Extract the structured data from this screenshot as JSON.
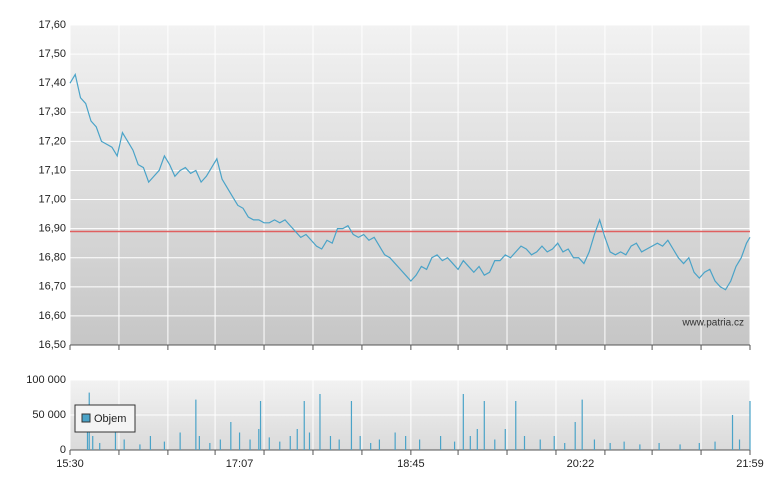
{
  "chart_data": [
    {
      "type": "line",
      "x": [
        930,
        933,
        936,
        939,
        942,
        945,
        948,
        951,
        954,
        957,
        960,
        963,
        966,
        969,
        972,
        975,
        978,
        981,
        984,
        987,
        990,
        993,
        996,
        999,
        1002,
        1005,
        1008,
        1011,
        1014,
        1017,
        1020,
        1023,
        1026,
        1029,
        1032,
        1035,
        1038,
        1041,
        1044,
        1047,
        1050,
        1053,
        1056,
        1059,
        1062,
        1065,
        1068,
        1071,
        1074,
        1077,
        1080,
        1083,
        1086,
        1089,
        1092,
        1095,
        1098,
        1101,
        1104,
        1107,
        1110,
        1113,
        1116,
        1119,
        1122,
        1125,
        1128,
        1131,
        1134,
        1137,
        1140,
        1143,
        1146,
        1149,
        1152,
        1155,
        1158,
        1161,
        1164,
        1167,
        1170,
        1173,
        1176,
        1179,
        1182,
        1185,
        1188,
        1191,
        1194,
        1197,
        1200,
        1203,
        1206,
        1209,
        1212,
        1215,
        1218,
        1221,
        1224,
        1227,
        1230,
        1233,
        1236,
        1239,
        1242,
        1245,
        1248,
        1251,
        1254,
        1257,
        1260,
        1263,
        1266,
        1269,
        1272,
        1275,
        1278,
        1281,
        1284,
        1287,
        1290,
        1293,
        1296,
        1299,
        1302,
        1305,
        1308,
        1311,
        1314,
        1317,
        1319
      ],
      "values": [
        17.4,
        17.43,
        17.35,
        17.33,
        17.27,
        17.25,
        17.2,
        17.19,
        17.18,
        17.15,
        17.23,
        17.2,
        17.17,
        17.12,
        17.11,
        17.06,
        17.08,
        17.1,
        17.15,
        17.12,
        17.08,
        17.1,
        17.11,
        17.09,
        17.1,
        17.06,
        17.08,
        17.11,
        17.14,
        17.07,
        17.04,
        17.01,
        16.98,
        16.97,
        16.94,
        16.93,
        16.93,
        16.92,
        16.92,
        16.93,
        16.92,
        16.93,
        16.91,
        16.89,
        16.87,
        16.88,
        16.86,
        16.84,
        16.83,
        16.86,
        16.85,
        16.9,
        16.9,
        16.91,
        16.88,
        16.87,
        16.88,
        16.86,
        16.87,
        16.84,
        16.81,
        16.8,
        16.78,
        16.76,
        16.74,
        16.72,
        16.74,
        16.77,
        16.76,
        16.8,
        16.81,
        16.79,
        16.8,
        16.78,
        16.76,
        16.79,
        16.77,
        16.75,
        16.77,
        16.74,
        16.75,
        16.79,
        16.79,
        16.81,
        16.8,
        16.82,
        16.84,
        16.83,
        16.81,
        16.82,
        16.84,
        16.82,
        16.83,
        16.85,
        16.82,
        16.83,
        16.8,
        16.8,
        16.78,
        16.82,
        16.88,
        16.93,
        16.87,
        16.82,
        16.81,
        16.82,
        16.81,
        16.84,
        16.85,
        16.82,
        16.83,
        16.84,
        16.85,
        16.84,
        16.86,
        16.83,
        16.8,
        16.78,
        16.8,
        16.75,
        16.73,
        16.75,
        16.76,
        16.72,
        16.7,
        16.69,
        16.72,
        16.77,
        16.8,
        16.85,
        16.87
      ],
      "color": "#4aa3c8",
      "xlim": [
        930,
        1319
      ],
      "xgrid": [
        930,
        958,
        986,
        1013,
        1041,
        1069,
        1097,
        1125,
        1152,
        1180,
        1208,
        1236,
        1263,
        1291,
        1319
      ],
      "ylim": [
        16.5,
        17.6
      ],
      "yticks": [
        {
          "value": 16.5,
          "label": "16,50"
        },
        {
          "value": 16.6,
          "label": "16,60"
        },
        {
          "value": 16.7,
          "label": "16,70"
        },
        {
          "value": 16.8,
          "label": "16,80"
        },
        {
          "value": 16.9,
          "label": "16,90"
        },
        {
          "value": 17.0,
          "label": "17,00"
        },
        {
          "value": 17.1,
          "label": "17,10"
        },
        {
          "value": 17.2,
          "label": "17,20"
        },
        {
          "value": 17.3,
          "label": "17,30"
        },
        {
          "value": 17.4,
          "label": "17,40"
        },
        {
          "value": 17.5,
          "label": "17,50"
        },
        {
          "value": 17.6,
          "label": "17,60"
        }
      ],
      "reference_line": {
        "value": 16.89,
        "color": "#e06060"
      },
      "annotation": "www.patria.cz",
      "grid": true
    },
    {
      "type": "bar",
      "x": [
        940,
        941,
        943,
        947,
        956,
        961,
        970,
        976,
        984,
        993,
        1002,
        1004,
        1010,
        1016,
        1022,
        1027,
        1033,
        1038,
        1039,
        1044,
        1050,
        1056,
        1060,
        1064,
        1067,
        1073,
        1079,
        1084,
        1091,
        1096,
        1102,
        1107,
        1116,
        1122,
        1130,
        1142,
        1150,
        1155,
        1159,
        1163,
        1167,
        1173,
        1179,
        1185,
        1190,
        1199,
        1207,
        1213,
        1219,
        1223,
        1230,
        1239,
        1247,
        1256,
        1267,
        1279,
        1290,
        1299,
        1309,
        1313,
        1319
      ],
      "series": [
        {
          "name": "Objem",
          "color": "#4aa3c8",
          "values": [
            35000,
            82000,
            20000,
            10000,
            25000,
            15000,
            8000,
            20000,
            12000,
            25000,
            72000,
            20000,
            10000,
            15000,
            40000,
            25000,
            15000,
            30000,
            70000,
            18000,
            12000,
            20000,
            30000,
            70000,
            25000,
            80000,
            20000,
            15000,
            70000,
            20000,
            10000,
            15000,
            25000,
            20000,
            15000,
            20000,
            12000,
            80000,
            20000,
            30000,
            70000,
            15000,
            30000,
            70000,
            20000,
            15000,
            20000,
            10000,
            40000,
            72000,
            15000,
            10000,
            12000,
            8000,
            10000,
            8000,
            10000,
            12000,
            50000,
            15000,
            70000
          ]
        }
      ],
      "xlim": [
        930,
        1319
      ],
      "xgrid": [
        930,
        958,
        986,
        1013,
        1041,
        1069,
        1097,
        1125,
        1152,
        1180,
        1208,
        1236,
        1263,
        1291,
        1319
      ],
      "xticks": [
        {
          "value": 930,
          "label": "15:30"
        },
        {
          "value": 1027,
          "label": "17:07"
        },
        {
          "value": 1125,
          "label": "18:45"
        },
        {
          "value": 1222,
          "label": "20:22"
        },
        {
          "value": 1319,
          "label": "21:59"
        }
      ],
      "ylim": [
        0,
        100000
      ],
      "yticks": [
        0,
        {
          "value": 50000,
          "label": "50 000"
        },
        {
          "value": 100000,
          "label": "100 000"
        }
      ],
      "grid": true
    }
  ]
}
